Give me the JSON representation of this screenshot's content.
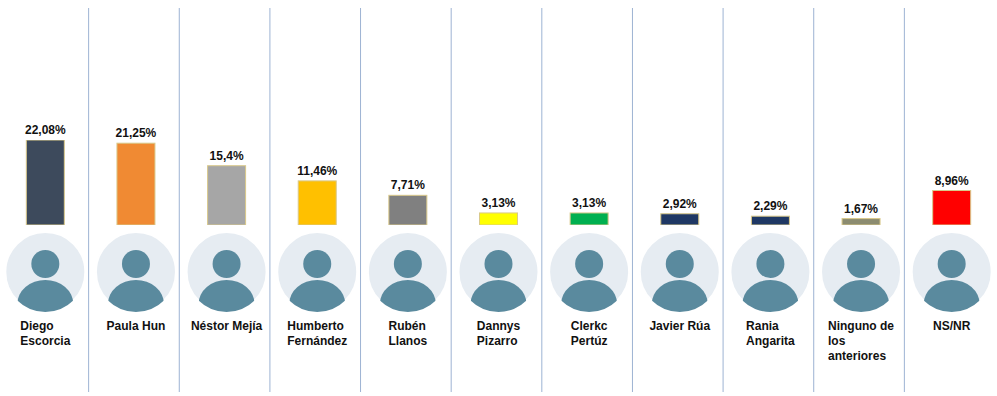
{
  "chart_data": {
    "type": "bar",
    "categories": [
      "Diego Escorcia",
      "Paula Hun",
      "Néstor Mejía",
      "Humberto Fernández",
      "Rubén Llanos",
      "Dannys Pizarro",
      "Clerkc Pertúz",
      "Javier Rúa",
      "Rania Angarita",
      "Ninguno de los anteriores",
      "NS/NR"
    ],
    "values": [
      22.08,
      21.25,
      15.4,
      11.46,
      7.71,
      3.13,
      3.13,
      2.92,
      2.29,
      1.67,
      8.96
    ],
    "value_labels": [
      "22,08%",
      "21,25%",
      "15,4%",
      "11,46%",
      "7,71%",
      "3,13%",
      "3,13%",
      "2,92%",
      "2,29%",
      "1,67%",
      "8,96%"
    ],
    "colors": [
      "#3d4a5c",
      "#f08a33",
      "#a6a6a6",
      "#ffc000",
      "#808080",
      "#ffff00",
      "#00b050",
      "#1f3864",
      "#1f3864",
      "#8c8c70",
      "#ff0000"
    ],
    "data_labels": true,
    "tick_labels": "x"
  }
}
